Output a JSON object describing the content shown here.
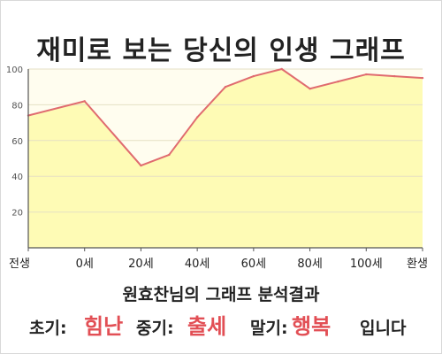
{
  "title": "재미로 보는 당신의 인생 그래프",
  "chart_data": {
    "type": "area",
    "x_ticks": [
      {
        "x": 0,
        "label": "전생"
      },
      {
        "x": 10,
        "label": "0세"
      },
      {
        "x": 20,
        "label": "20세"
      },
      {
        "x": 30,
        "label": "40세"
      },
      {
        "x": 40,
        "label": "60세"
      },
      {
        "x": 50,
        "label": "80세"
      },
      {
        "x": 60,
        "label": "100세"
      },
      {
        "x": 70,
        "label": "환생"
      }
    ],
    "xlim": [
      0,
      70
    ],
    "ylim": [
      0,
      100
    ],
    "y_ticks": [
      20,
      40,
      60,
      80,
      100
    ],
    "x": [
      0,
      10,
      20,
      25,
      30,
      35,
      40,
      45,
      50,
      55,
      60,
      65,
      70
    ],
    "y": [
      74,
      82,
      46,
      52,
      73,
      90,
      96,
      100,
      89,
      93,
      97,
      96,
      95
    ],
    "colors": {
      "line": "#e06b6f",
      "fill": "#fefbb5",
      "plot_bg": "#fffdef",
      "grid": "#e5e0c4",
      "axis": "#555555"
    },
    "grid": true
  },
  "summary": {
    "title": "원효찬님의 그래프 분석결과",
    "early_label": "초기:",
    "early_value": "힘난",
    "middle_label": "중기:",
    "middle_value": "출세",
    "late_label": "말기:",
    "late_value": "행복",
    "ending": "입니다"
  },
  "accent_color": "#e24f55"
}
